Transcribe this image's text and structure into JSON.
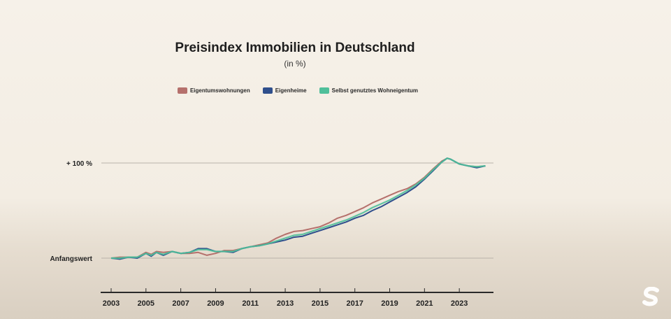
{
  "chart_data": {
    "type": "line",
    "title": "Preisindex Immobilien in Deutschland",
    "subtitle": "(in %)",
    "y_tick_labels": [
      "+ 100 %",
      "Anfangswert"
    ],
    "y_ticks": [
      100,
      0
    ],
    "ylim": [
      -35,
      100
    ],
    "xlim": [
      2003,
      2025
    ],
    "x_tick_labels": [
      "2003",
      "2005",
      "2007",
      "2009",
      "2011",
      "2013",
      "2015",
      "2017",
      "2019",
      "2021",
      "2023"
    ],
    "legend_position": "top-center",
    "grid": "horizontal lines at Anfangswert and +100 %",
    "series": [
      {
        "name": "Eigentumswohnungen",
        "color": "#b5706c",
        "x": [
          2003,
          2003.5,
          2004,
          2004.5,
          2005,
          2005.3,
          2005.6,
          2006,
          2006.5,
          2007,
          2007.5,
          2008,
          2008.5,
          2009,
          2009.5,
          2010,
          2010.5,
          2011,
          2011.5,
          2012,
          2012.5,
          2013,
          2013.5,
          2014,
          2014.5,
          2015,
          2015.5,
          2016,
          2016.5,
          2017,
          2017.5,
          2018,
          2018.5,
          2019,
          2019.5,
          2020,
          2020.5,
          2021,
          2021.5,
          2022,
          2022.3,
          2022.5,
          2023,
          2023.5,
          2024,
          2024.5
        ],
        "y": [
          0,
          1,
          1,
          1,
          6,
          4,
          7,
          6,
          7,
          5,
          5,
          6,
          3,
          5,
          8,
          8,
          10,
          12,
          14,
          16,
          21,
          25,
          28,
          29,
          31,
          33,
          37,
          42,
          45,
          49,
          53,
          58,
          62,
          66,
          70,
          73,
          78,
          85,
          94,
          102,
          105,
          104,
          99,
          97,
          96,
          97
        ]
      },
      {
        "name": "Eigenheime",
        "color": "#2f4f8c",
        "x": [
          2003,
          2003.5,
          2004,
          2004.5,
          2005,
          2005.3,
          2005.6,
          2006,
          2006.5,
          2007,
          2007.5,
          2008,
          2008.5,
          2009,
          2009.5,
          2010,
          2010.5,
          2011,
          2011.5,
          2012,
          2012.5,
          2013,
          2013.5,
          2014,
          2014.5,
          2015,
          2015.5,
          2016,
          2016.5,
          2017,
          2017.5,
          2018,
          2018.5,
          2019,
          2019.5,
          2020,
          2020.5,
          2021,
          2021.5,
          2022,
          2022.3,
          2022.5,
          2023,
          2023.5,
          2024,
          2024.5
        ],
        "y": [
          0,
          -1,
          1,
          0,
          5,
          2,
          6,
          3,
          7,
          5,
          6,
          10,
          10,
          7,
          7,
          6,
          10,
          12,
          13,
          15,
          17,
          19,
          22,
          23,
          26,
          29,
          32,
          35,
          38,
          42,
          45,
          50,
          54,
          59,
          64,
          69,
          75,
          83,
          92,
          101,
          105,
          104,
          99,
          97,
          95,
          97
        ]
      },
      {
        "name": "Selbst genutztes Wohneigentum",
        "color": "#4fbf9a",
        "x": [
          2003,
          2003.5,
          2004,
          2004.5,
          2005,
          2005.3,
          2005.6,
          2006,
          2006.5,
          2007,
          2007.5,
          2008,
          2008.5,
          2009,
          2009.5,
          2010,
          2010.5,
          2011,
          2011.5,
          2012,
          2012.5,
          2013,
          2013.5,
          2014,
          2014.5,
          2015,
          2015.5,
          2016,
          2016.5,
          2017,
          2017.5,
          2018,
          2018.5,
          2019,
          2019.5,
          2020,
          2020.5,
          2021,
          2021.5,
          2022,
          2022.3,
          2022.5,
          2023,
          2023.5,
          2024,
          2024.5
        ],
        "y": [
          0,
          0,
          1,
          1,
          5,
          3,
          6,
          4,
          7,
          5,
          6,
          9,
          9,
          7,
          7,
          7,
          10,
          12,
          13,
          15,
          18,
          21,
          24,
          25,
          28,
          31,
          34,
          37,
          40,
          44,
          48,
          53,
          57,
          61,
          66,
          71,
          77,
          84,
          93,
          101,
          105,
          104,
          99,
          97,
          96,
          97
        ]
      }
    ]
  }
}
